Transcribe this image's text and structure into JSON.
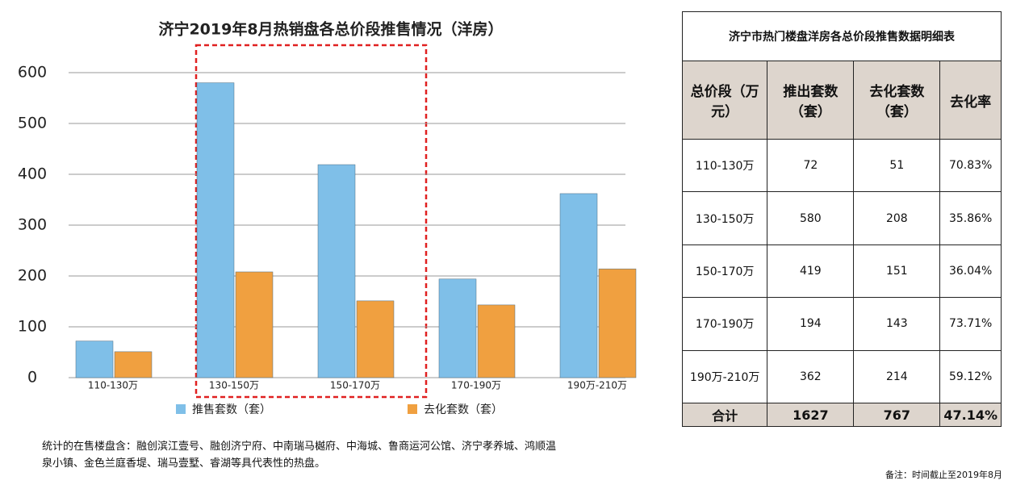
{
  "chart_data": {
    "type": "bar",
    "title": "济宁2019年8月热销盘各总价段推售情况（洋房）",
    "categories": [
      "110-130万",
      "130-150万",
      "150-170万",
      "170-190万",
      "190万-210万"
    ],
    "series": [
      {
        "name": "推售套数（套）",
        "color": "#7fbfe8",
        "values": [
          72,
          580,
          419,
          194,
          362
        ]
      },
      {
        "name": "去化套数（套）",
        "color": "#f0a040",
        "values": [
          51,
          208,
          151,
          143,
          214
        ]
      }
    ],
    "ylim": [
      0,
      650
    ],
    "yticks": [
      0,
      100,
      200,
      300,
      400,
      500,
      600
    ],
    "grid": true
  },
  "table": {
    "title": "济宁市热门楼盘洋房各总价段推售数据明细表",
    "header": [
      "总价段（万元）",
      "推出套数（套）",
      "去化套数（套）",
      "去化率"
    ],
    "rows": [
      [
        "110-130万",
        "72",
        "51",
        "70.83%"
      ],
      [
        "130-150万",
        "580",
        "208",
        "35.86%"
      ],
      [
        "150-170万",
        "419",
        "151",
        "36.04%"
      ],
      [
        "170-190万",
        "194",
        "143",
        "73.71%"
      ],
      [
        "190万-210万",
        "362",
        "214",
        "59.12%"
      ]
    ],
    "total": [
      "合计",
      "1627",
      "767",
      "47.14%"
    ]
  },
  "footnote": "统计的在售楼盘含：融创滨江壹号、融创济宁府、中南瑞马樾府、中海城、鲁商运河公馆、济宁孝养城、鸿顺温泉小镇、金色兰庭香堤、瑞马壹墅、睿湖等具代表性的热盘。",
  "note": "备注：时间截止至2019年8月"
}
